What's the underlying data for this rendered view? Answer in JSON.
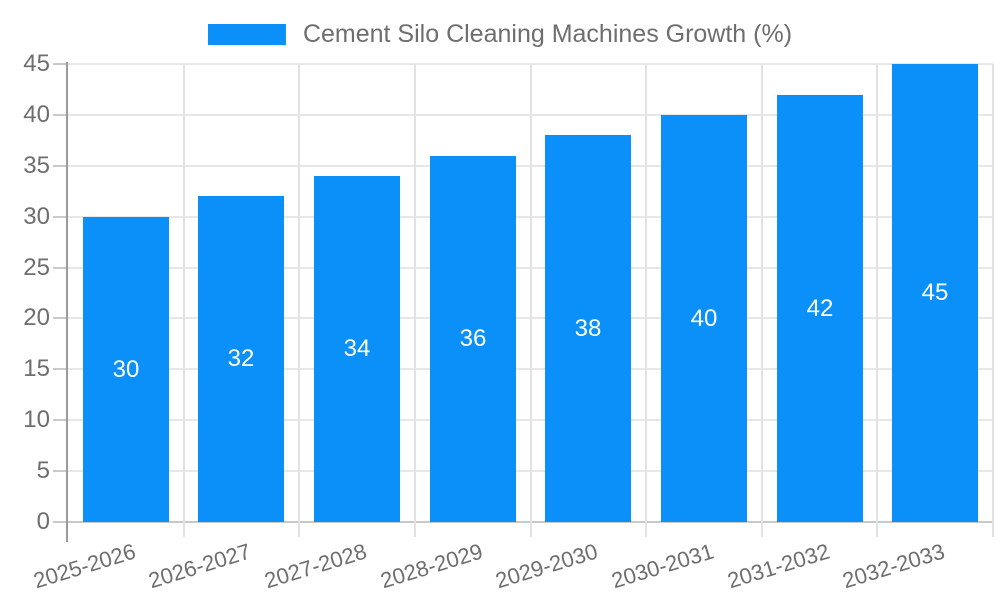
{
  "legend": {
    "label": "Cement Silo Cleaning Machines Growth (%)",
    "swatch_color": "#0a90f8"
  },
  "chart_data": {
    "type": "bar",
    "title": "Cement Silo Cleaning Machines Growth (%)",
    "series_name": "Cement Silo Cleaning Machines Growth (%)",
    "categories": [
      "2025-2026",
      "2026-2027",
      "2027-2028",
      "2028-2029",
      "2029-2030",
      "2030-2031",
      "2031-2032",
      "2032-2033"
    ],
    "values": [
      30,
      32,
      34,
      36,
      38,
      40,
      42,
      45
    ],
    "data_labels": [
      "30",
      "32",
      "34",
      "36",
      "38",
      "40",
      "42",
      "45"
    ],
    "data_label_color": "#ffffff",
    "bar_color": "#0a90f8",
    "xlabel": "",
    "ylabel": "",
    "ylim": [
      0,
      45
    ],
    "yticks": [
      0,
      5,
      10,
      15,
      20,
      25,
      30,
      35,
      40,
      45
    ],
    "grid": true,
    "legend_position": "top",
    "x_label_rotation_deg": -17
  },
  "colors": {
    "background": "#ffffff",
    "bar": "#0a90f8",
    "axis_text": "#6e6e6e",
    "grid_horizontal": "#e7e7e7",
    "grid_vertical": "#e2e2e2",
    "baseline": "#c9c9c9",
    "axis_line": "#9b9b9b"
  }
}
